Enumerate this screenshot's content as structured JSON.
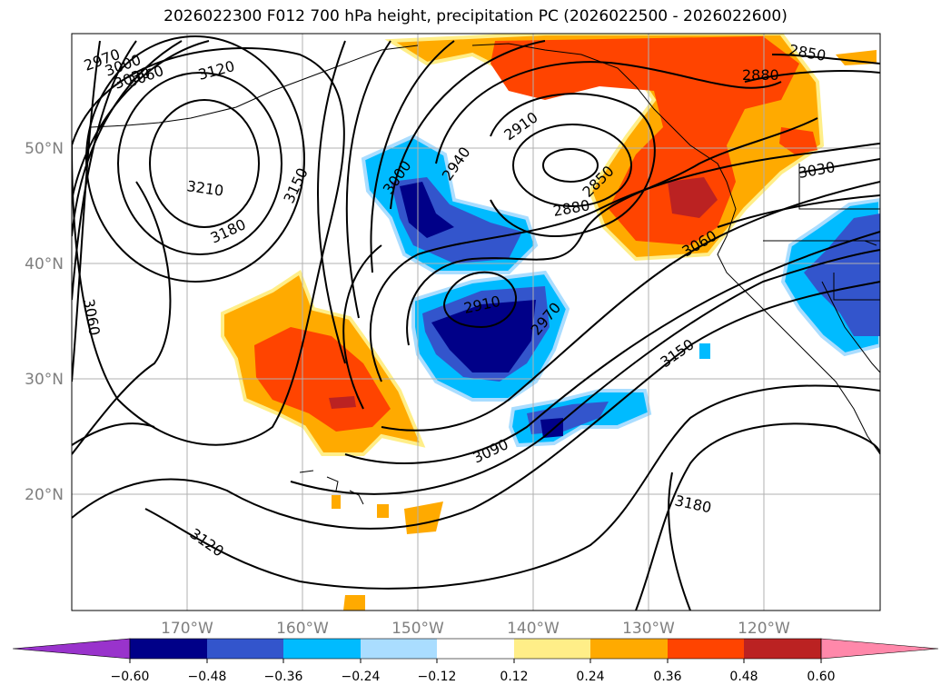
{
  "title": "2026022300 F012 700 hPa height, precipitation PC (2026022500 - 2026022600)",
  "map": {
    "lat_labels": [
      {
        "text": "50°N",
        "lat": 50
      },
      {
        "text": "40°N",
        "lat": 40
      },
      {
        "text": "30°N",
        "lat": 30
      },
      {
        "text": "20°N",
        "lat": 20
      }
    ],
    "lon_labels": [
      {
        "text": "170°W",
        "lon": -170
      },
      {
        "text": "160°W",
        "lon": -160
      },
      {
        "text": "150°W",
        "lon": -150
      },
      {
        "text": "140°W",
        "lon": -140
      },
      {
        "text": "130°W",
        "lon": -130
      },
      {
        "text": "120°W",
        "lon": -120
      }
    ],
    "grid": true,
    "contour_labels": [
      "2970",
      "3000",
      "3030",
      "3060",
      "3120",
      "3210",
      "3180",
      "3150",
      "3060",
      "3000",
      "2940",
      "2910",
      "2880",
      "2850",
      "2880",
      "2850",
      "3030",
      "3060",
      "2910",
      "2970",
      "3150",
      "3090",
      "3180",
      "3120"
    ]
  },
  "colorbar": {
    "tick_labels": [
      "−0.60",
      "−0.48",
      "−0.36",
      "−0.24",
      "−0.12",
      "0.12",
      "0.24",
      "0.36",
      "0.48",
      "0.60"
    ],
    "colors": [
      "#9933cc",
      "#000088",
      "#3355cc",
      "#00bbff",
      "#aaddff",
      "#ffffff",
      "#ffee88",
      "#ffaa00",
      "#ff4400",
      "#bb2222",
      "#ff88aa"
    ]
  }
}
